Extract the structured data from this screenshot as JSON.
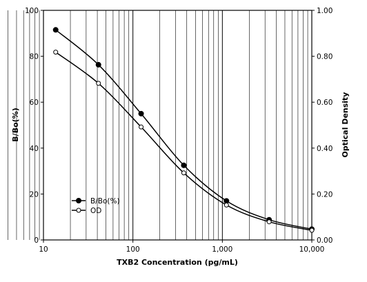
{
  "chart_data": {
    "type": "line",
    "xlabel": "TXB2 Concentration (pg/mL)",
    "ylabel": "B/Bo(%)",
    "y2label": "Optical Density",
    "xscale": "log",
    "xlim": [
      10,
      10000
    ],
    "ylim": [
      0,
      100
    ],
    "y2lim": [
      0,
      1.0
    ],
    "grid": "vertical-log",
    "legend_position": "bottom-left",
    "x_ticks": [
      {
        "value": 10,
        "label": "10"
      },
      {
        "value": 100,
        "label": "100"
      },
      {
        "value": 1000,
        "label": "1,000"
      },
      {
        "value": 10000,
        "label": "10,000"
      }
    ],
    "y_ticks": [
      {
        "value": 0,
        "label": "0"
      },
      {
        "value": 20,
        "label": "20"
      },
      {
        "value": 40,
        "label": "40"
      },
      {
        "value": 60,
        "label": "60"
      },
      {
        "value": 80,
        "label": "80"
      },
      {
        "value": 100,
        "label": "100"
      }
    ],
    "y2_ticks": [
      {
        "value": 0,
        "label": "0.00"
      },
      {
        "value": 0.2,
        "label": "0.20"
      },
      {
        "value": 0.4,
        "label": "0.40"
      },
      {
        "value": 0.6,
        "label": "0.60"
      },
      {
        "value": 0.8,
        "label": "0.80"
      },
      {
        "value": 1.0,
        "label": "1.00"
      }
    ],
    "series": [
      {
        "name": "B/Bo(%)",
        "axis": "left",
        "marker": "filled-circle",
        "x": [
          13.7,
          41.2,
          123.5,
          370.4,
          1111,
          3333,
          10000
        ],
        "values": [
          91.5,
          76.3,
          55.0,
          32.5,
          17.0,
          8.8,
          4.7
        ]
      },
      {
        "name": "OD",
        "axis": "right",
        "marker": "open-circle",
        "x": [
          13.7,
          41.2,
          123.5,
          370.4,
          1111,
          3333,
          10000
        ],
        "values": [
          0.818,
          0.682,
          0.492,
          0.292,
          0.152,
          0.079,
          0.042
        ]
      }
    ]
  }
}
